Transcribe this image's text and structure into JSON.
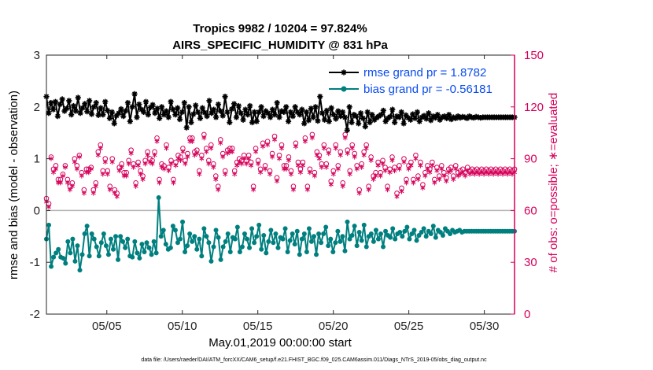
{
  "chart_data": {
    "type": "line",
    "title_line1": "Tropics 9982 / 10204 = 97.824%",
    "title_line2": "AIRS_SPECIFIC_HUMIDITY @ 831 hPa",
    "ylabel_left": "rmse and bias (model - observation)",
    "ylabel_right": "# of obs: o=possible; ∗=evaluated",
    "xlabel": "May.01,2019 00:00:00 start",
    "footnote": "data file: /Users/raeder/DAI/ATM_forcXX/CAM6_setup/f.e21.FHIST_BGC.f09_025.CAM6assim.011/Diags_NTrS_2019-05/obs_diag_output.nc",
    "y_left_range": [
      -2,
      3
    ],
    "y_left_ticks": [
      "-2",
      "-1",
      "0",
      "1",
      "2",
      "3"
    ],
    "y_right_range": [
      0,
      150
    ],
    "y_right_ticks": [
      "0",
      "30",
      "60",
      "90",
      "120",
      "150"
    ],
    "x_range_days": [
      1,
      32
    ],
    "x_ticks": [
      {
        "day": 5,
        "label": "05/05"
      },
      {
        "day": 10,
        "label": "05/10"
      },
      {
        "day": 15,
        "label": "05/15"
      },
      {
        "day": 20,
        "label": "05/20"
      },
      {
        "day": 25,
        "label": "05/25"
      },
      {
        "day": 30,
        "label": "05/30"
      }
    ],
    "zero_line": 0,
    "series": [
      {
        "name": "rmse",
        "legend": "rmse grand pr = 1.8782",
        "color": "#000000",
        "marker": "star",
        "values": [
          2.2,
          1.88,
          2.08,
          1.95,
          2.1,
          1.82,
          2.05,
          2.15,
          1.92,
          1.97,
          2.12,
          1.85,
          2.02,
          1.92,
          2.18,
          1.88,
          1.98,
          2.06,
          1.91,
          2.12,
          1.86,
          2.0,
          2.08,
          1.84,
          1.98,
          1.85,
          2.1,
          1.93,
          1.78,
          1.9,
          1.68,
          1.83,
          1.88,
          1.96,
          1.82,
          1.92,
          2.08,
          1.72,
          2.0,
          2.25,
          1.8,
          2.05,
          1.95,
          1.9,
          2.1,
          1.85,
          1.99,
          2.04,
          1.88,
          1.97,
          1.78,
          2.0,
          1.85,
          1.92,
          1.8,
          2.1,
          1.95,
          1.85,
          1.98,
          1.76,
          1.9,
          2.08,
          1.6,
          2.0,
          1.7,
          1.86,
          2.03,
          1.9,
          1.78,
          1.98,
          1.89,
          1.82,
          2.12,
          1.88,
          1.95,
          1.8,
          2.05,
          1.92,
          1.83,
          2.2,
          1.9,
          1.7,
          1.96,
          2.06,
          1.8,
          2.02,
          1.88,
          1.75,
          1.95,
          1.85,
          2.02,
          1.7,
          1.9,
          1.72,
          1.9,
          2.0,
          1.82,
          1.92,
          1.88,
          1.8,
          1.95,
          1.85,
          2.08,
          1.8,
          1.92,
          1.9,
          2.0,
          1.72,
          1.9,
          1.82,
          2.0,
          1.9,
          1.85,
          1.95,
          1.68,
          1.9,
          1.74,
          1.97,
          1.8,
          2.0,
          1.73,
          2.2,
          1.88,
          1.75,
          1.93,
          1.72,
          1.98,
          1.85,
          1.77,
          1.92,
          1.82,
          1.9,
          1.8,
          1.55,
          2.0,
          1.7,
          1.85,
          1.82,
          1.68,
          1.88,
          1.78,
          1.62,
          1.9,
          1.7,
          1.85,
          1.75,
          1.79,
          1.82,
          1.85,
          1.93,
          1.72,
          1.78,
          1.81,
          1.95,
          1.7,
          1.82,
          1.8,
          1.9,
          1.68,
          1.84,
          1.79,
          1.75,
          1.86,
          1.78,
          1.9,
          1.72,
          1.8,
          1.83,
          1.77,
          1.88,
          1.74,
          1.82,
          1.79,
          1.85,
          1.75,
          1.8,
          1.82,
          1.78,
          1.85,
          1.76,
          1.8,
          1.78,
          1.82,
          1.79,
          1.81,
          1.8,
          1.78,
          1.82,
          1.8,
          1.79,
          1.81,
          1.8,
          1.79,
          1.8,
          1.8,
          1.8,
          1.8,
          1.8,
          1.8,
          1.8,
          1.8,
          1.8,
          1.8,
          1.8,
          1.8,
          1.8,
          1.8,
          1.8
        ]
      },
      {
        "name": "bias",
        "legend": "bias grand pr = -0.56181",
        "color": "#007f7f",
        "marker": "circle",
        "values": [
          -0.55,
          -0.28,
          -1.08,
          -0.9,
          -0.82,
          -0.75,
          -0.9,
          -0.92,
          -1.02,
          -0.6,
          -0.82,
          -0.55,
          -0.98,
          -0.68,
          -1.15,
          -0.85,
          -0.45,
          -0.3,
          -0.88,
          -0.45,
          -0.55,
          -0.7,
          -0.88,
          -0.62,
          -0.45,
          -0.68,
          -0.85,
          -0.55,
          -0.75,
          -0.5,
          -0.95,
          -0.5,
          -0.6,
          -0.72,
          -0.55,
          -0.88,
          -0.9,
          -0.6,
          -0.82,
          -0.92,
          -0.65,
          -0.8,
          -0.62,
          -0.72,
          -0.85,
          -0.6,
          -0.82,
          0.25,
          -0.5,
          -0.38,
          -0.65,
          -0.75,
          -0.72,
          -0.3,
          -0.38,
          -0.62,
          -0.55,
          -0.22,
          -0.8,
          -0.68,
          -0.45,
          -0.6,
          -0.5,
          -0.75,
          -0.55,
          -0.88,
          -0.35,
          -0.5,
          -0.62,
          -0.98,
          -0.7,
          -0.38,
          -0.52,
          -0.95,
          -0.7,
          -0.6,
          -0.45,
          -0.8,
          -0.52,
          -0.55,
          -0.32,
          -0.8,
          -0.7,
          -0.45,
          -0.55,
          -0.72,
          -0.35,
          -0.62,
          -0.5,
          -0.28,
          -0.75,
          -0.48,
          -0.82,
          -0.6,
          -0.38,
          -0.62,
          -0.45,
          -0.72,
          -0.52,
          -0.55,
          -0.35,
          -0.8,
          -0.58,
          -0.45,
          -0.65,
          -0.4,
          -0.85,
          -0.55,
          -0.45,
          -0.8,
          -0.35,
          -0.6,
          -0.5,
          -0.85,
          -0.45,
          -0.62,
          -0.45,
          -0.32,
          -0.68,
          -0.55,
          -0.8,
          -0.62,
          -0.4,
          -0.6,
          -0.5,
          -0.78,
          -0.22,
          -0.55,
          -0.48,
          -0.3,
          -0.68,
          -0.42,
          -0.58,
          -0.28,
          -0.7,
          -0.5,
          -0.45,
          -0.6,
          -0.38,
          -0.55,
          -0.45,
          -0.7,
          -0.4,
          -0.48,
          -0.52,
          -0.35,
          -0.55,
          -0.45,
          -0.42,
          -0.5,
          -0.4,
          -0.32,
          -0.55,
          -0.45,
          -0.38,
          -0.58,
          -0.48,
          -0.42,
          -0.35,
          -0.5,
          -0.4,
          -0.45,
          -0.3,
          -0.52,
          -0.38,
          -0.42,
          -0.48,
          -0.35,
          -0.4,
          -0.45,
          -0.38,
          -0.42,
          -0.4,
          -0.38,
          -0.42,
          -0.4,
          -0.4,
          -0.4,
          -0.4,
          -0.4,
          -0.4,
          -0.4,
          -0.4,
          -0.4,
          -0.4,
          -0.4,
          -0.4,
          -0.4,
          -0.4,
          -0.4,
          -0.4,
          -0.4,
          -0.4,
          -0.4,
          -0.4,
          -0.4,
          -0.4
        ]
      },
      {
        "name": "possible",
        "color": "#d6005a",
        "marker": "open-circle",
        "axis": "right",
        "values": [
          67,
          64,
          91,
          84,
          86,
          78,
          78,
          81,
          86,
          78,
          74,
          76,
          90,
          86,
          92,
          82,
          72,
          84,
          84,
          85,
          72,
          76,
          94,
          98,
          83,
          90,
          83,
          74,
          90,
          72,
          70,
          85,
          87,
          82,
          82,
          89,
          95,
          87,
          76,
          88,
          83,
          80,
          89,
          94,
          90,
          89,
          94,
          102,
          78,
          87,
          86,
          98,
          85,
          89,
          78,
          88,
          92,
          91,
          96,
          89,
          93,
          102,
          102,
          94,
          95,
          83,
          92,
          104,
          96,
          89,
          98,
          87,
          80,
          74,
          101,
          93,
          83,
          95,
          96,
          96,
          83,
          88,
          90,
          89,
          92,
          89,
          92,
          88,
          74,
          96,
          89,
          84,
          99,
          86,
          100,
          83,
          93,
          103,
          79,
          92,
          98,
          86,
          86,
          91,
          83,
          74,
          99,
          88,
          84,
          88,
          102,
          74,
          84,
          104,
          82,
          94,
          92,
          87,
          98,
          87,
          95,
          77,
          83,
          98,
          86,
          94,
          76,
          104,
          95,
          83,
          98,
          93,
          86,
          72,
          87,
          94,
          98,
          74,
          91,
          80,
          82,
          88,
          82,
          89,
          85,
          74,
          84,
          91,
          85,
          70,
          86,
          73,
          90,
          78,
          86,
          88,
          78,
          92,
          80,
          88,
          75,
          82,
          86,
          84,
          88,
          78,
          85,
          80,
          86,
          82,
          79,
          84,
          85,
          80,
          86,
          82,
          83,
          84,
          82,
          85,
          83,
          84,
          83,
          84,
          83,
          84,
          83,
          84,
          83,
          84,
          83,
          84,
          83,
          84,
          83,
          84,
          83,
          84,
          83,
          84
        ]
      },
      {
        "name": "evaluated",
        "color": "#d6005a",
        "marker": "asterisk",
        "axis": "right",
        "values": [
          65,
          62,
          90,
          82,
          84,
          76,
          76,
          80,
          85,
          76,
          72,
          74,
          88,
          84,
          91,
          80,
          70,
          82,
          82,
          84,
          70,
          74,
          92,
          96,
          81,
          88,
          81,
          72,
          88,
          70,
          68,
          83,
          85,
          80,
          80,
          87,
          93,
          85,
          74,
          86,
          81,
          78,
          87,
          92,
          88,
          87,
          92,
          100,
          76,
          85,
          84,
          96,
          83,
          87,
          76,
          86,
          90,
          89,
          94,
          87,
          91,
          100,
          100,
          92,
          93,
          81,
          90,
          102,
          94,
          87,
          96,
          85,
          78,
          72,
          99,
          91,
          81,
          93,
          94,
          94,
          81,
          86,
          88,
          87,
          90,
          87,
          90,
          86,
          72,
          94,
          87,
          82,
          97,
          84,
          98,
          81,
          91,
          101,
          77,
          90,
          96,
          84,
          84,
          89,
          81,
          72,
          97,
          86,
          82,
          86,
          100,
          72,
          82,
          102,
          80,
          92,
          90,
          85,
          96,
          85,
          93,
          75,
          81,
          96,
          84,
          92,
          74,
          102,
          93,
          81,
          96,
          91,
          84,
          70,
          85,
          92,
          96,
          72,
          89,
          78,
          80,
          86,
          80,
          87,
          83,
          72,
          82,
          89,
          83,
          68,
          84,
          71,
          88,
          76,
          84,
          86,
          76,
          90,
          78,
          86,
          73,
          80,
          84,
          82,
          86,
          76,
          83,
          78,
          84,
          80,
          77,
          82,
          83,
          78,
          84,
          80,
          81,
          82,
          80,
          83,
          81,
          82,
          81,
          82,
          81,
          82,
          81,
          82,
          81,
          82,
          81,
          82,
          81,
          82,
          81,
          82,
          81,
          82,
          81,
          82
        ]
      }
    ]
  }
}
